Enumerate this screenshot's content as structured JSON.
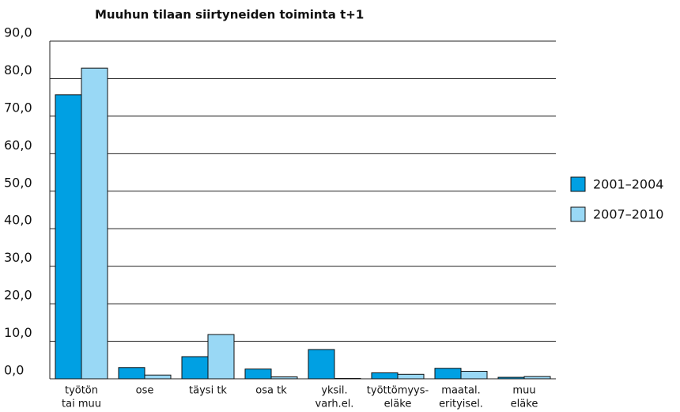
{
  "chart_data": {
    "type": "bar",
    "title": "Muuhun tilaan siirtyneiden toiminta t+1",
    "categories": [
      [
        "työtön",
        "tai muu"
      ],
      [
        "ose"
      ],
      [
        "täysi tk"
      ],
      [
        "osa tk"
      ],
      [
        "yksil.",
        "varh.el."
      ],
      [
        "työttömyys-",
        "eläke"
      ],
      [
        "maatal.",
        "erityisel."
      ],
      [
        "muu",
        "eläke"
      ]
    ],
    "series": [
      {
        "name": "2001–2004",
        "color": "#00a0e3",
        "values": [
          75.7,
          3.0,
          5.9,
          2.6,
          7.8,
          1.6,
          2.8,
          0.4
        ]
      },
      {
        "name": "2007–2010",
        "color": "#99d8f5",
        "values": [
          82.8,
          1.0,
          11.8,
          0.5,
          0.1,
          1.2,
          2.0,
          0.6
        ]
      }
    ],
    "ylim": [
      0,
      90
    ],
    "yticks": [
      {
        "value": 0,
        "label": "0,0"
      },
      {
        "value": 10,
        "label": "10,0"
      },
      {
        "value": 20,
        "label": "20,0"
      },
      {
        "value": 30,
        "label": "30,0"
      },
      {
        "value": 40,
        "label": "40,0"
      },
      {
        "value": 50,
        "label": "50,0"
      },
      {
        "value": 60,
        "label": "60,0"
      },
      {
        "value": 70,
        "label": "70,0"
      },
      {
        "value": 80,
        "label": "80,0"
      },
      {
        "value": 90,
        "label": "90,0"
      }
    ],
    "grid": true,
    "legend": "right"
  }
}
